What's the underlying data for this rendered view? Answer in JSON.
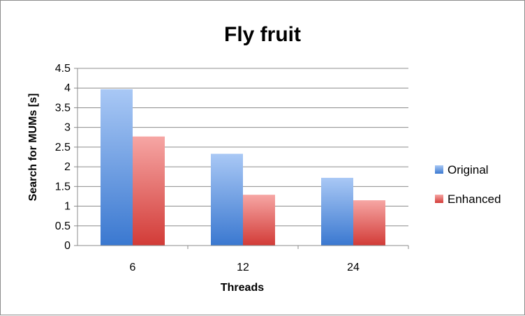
{
  "chart_data": {
    "type": "bar",
    "title": "Fly fruit",
    "xlabel": "Threads",
    "ylabel": "Search for MUMs [s]",
    "categories": [
      "6",
      "12",
      "24"
    ],
    "series": [
      {
        "name": "Original",
        "values": [
          3.97,
          2.33,
          1.72
        ],
        "color_top": "#a9c8f5",
        "color_bottom": "#3a78d0"
      },
      {
        "name": "Enhanced",
        "values": [
          2.77,
          1.29,
          1.15
        ],
        "color_top": "#f6a6a4",
        "color_bottom": "#d23b37"
      }
    ],
    "ylim": [
      0,
      4.5
    ],
    "yticks": [
      "0",
      "0.5",
      "1",
      "1.5",
      "2",
      "2.5",
      "3",
      "3.5",
      "4",
      "4.5"
    ],
    "grid": true,
    "legend_position": "right"
  }
}
